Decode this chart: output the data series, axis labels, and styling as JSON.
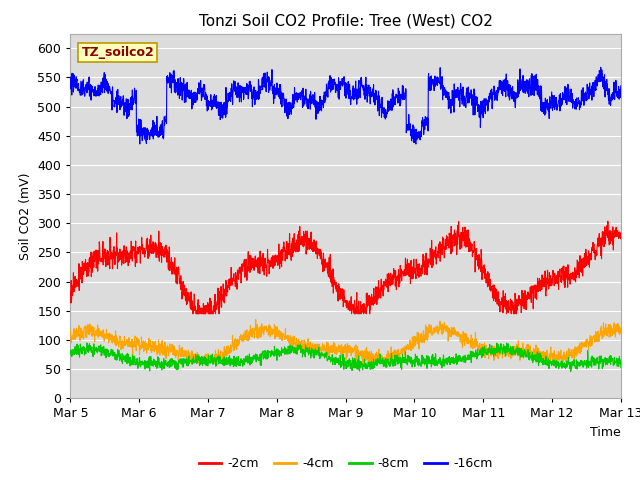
{
  "title": "Tonzi Soil CO2 Profile: Tree (West) CO2",
  "ylabel": "Soil CO2 (mV)",
  "xlabel": "Time",
  "label_box_text": "TZ_soilco2",
  "ylim": [
    0,
    625
  ],
  "yticks": [
    0,
    50,
    100,
    150,
    200,
    250,
    300,
    350,
    400,
    450,
    500,
    550,
    600
  ],
  "xtick_labels": [
    "Mar 5",
    "Mar 6",
    "Mar 7",
    "Mar 8",
    "Mar 9",
    "Mar 10",
    "Mar 11",
    "Mar 12",
    "Mar 13"
  ],
  "colors": {
    "line_2cm": "#ff0000",
    "line_4cm": "#ffa500",
    "line_8cm": "#00cc00",
    "line_16cm": "#0000ff"
  },
  "legend_labels": [
    "-2cm",
    "-4cm",
    "-8cm",
    "-16cm"
  ],
  "bg_color": "#dcdcdc",
  "title_fontsize": 11,
  "axis_fontsize": 9,
  "tick_fontsize": 9
}
